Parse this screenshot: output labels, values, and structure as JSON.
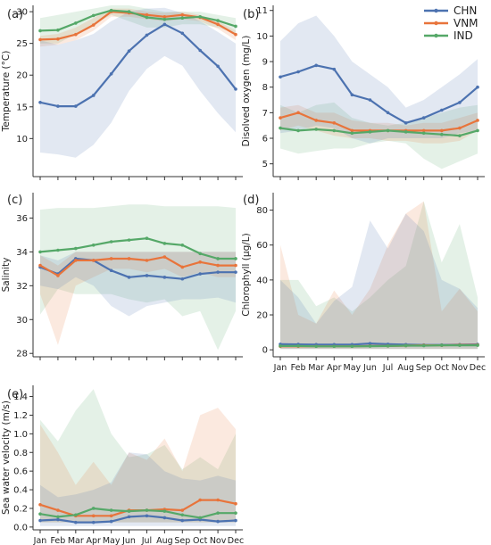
{
  "legend": {
    "position": "top-right",
    "items": [
      {
        "label": "CHN",
        "color": "#4C72B0"
      },
      {
        "label": "VNM",
        "color": "#E8743B"
      },
      {
        "label": "IND",
        "color": "#55A868"
      }
    ]
  },
  "months": [
    "Jan",
    "Feb",
    "Mar",
    "Apr",
    "May",
    "Jun",
    "Jul",
    "Aug",
    "Sep",
    "Oct",
    "Nov",
    "Dec"
  ],
  "chart_data": [
    {
      "id": "temperature",
      "panel_label": "(a)",
      "type": "line",
      "ylabel": "Temperature (°C)",
      "ylim": [
        4,
        31
      ],
      "yticks": [
        10,
        15,
        20,
        25,
        30
      ],
      "grid": false,
      "show_xticks": false,
      "series": [
        {
          "name": "CHN",
          "color": "#4C72B0",
          "values": [
            15.7,
            15.1,
            15.1,
            16.8,
            20.2,
            23.8,
            26.3,
            28.0,
            26.6,
            23.9,
            21.4,
            17.8
          ],
          "upper": [
            25.5,
            24.8,
            25.5,
            26.5,
            28.5,
            30.0,
            30.5,
            30.6,
            29.8,
            28.5,
            26.8,
            25.0
          ],
          "lower": [
            7.8,
            7.5,
            7.0,
            9.0,
            12.5,
            17.5,
            21.0,
            23.0,
            21.5,
            17.5,
            14.0,
            11.0
          ]
        },
        {
          "name": "VNM",
          "color": "#E8743B",
          "values": [
            25.6,
            25.7,
            26.4,
            27.9,
            30.0,
            29.8,
            29.5,
            29.2,
            29.5,
            29.1,
            28.0,
            26.4
          ],
          "upper": [
            26.2,
            26.5,
            27.5,
            29.0,
            30.5,
            30.5,
            30.0,
            29.8,
            30.0,
            29.5,
            28.5,
            27.0
          ],
          "lower": [
            24.5,
            24.8,
            25.5,
            27.0,
            29.2,
            29.2,
            28.8,
            28.5,
            28.8,
            28.5,
            27.3,
            25.5
          ]
        },
        {
          "name": "IND",
          "color": "#55A868",
          "values": [
            27.0,
            27.1,
            28.2,
            29.4,
            30.2,
            30.0,
            29.1,
            28.8,
            29.0,
            29.2,
            28.6,
            27.7
          ],
          "upper": [
            29.0,
            29.5,
            30.0,
            30.5,
            31.0,
            31.0,
            30.5,
            30.0,
            30.0,
            30.0,
            29.5,
            29.0
          ],
          "lower": [
            25.0,
            25.0,
            26.5,
            28.0,
            29.5,
            28.5,
            27.5,
            27.5,
            28.0,
            28.0,
            27.5,
            26.5
          ]
        }
      ]
    },
    {
      "id": "dissolved_oxygen",
      "panel_label": "(b)",
      "type": "line",
      "ylabel": "Disolved oxygen (mg/L)",
      "ylim": [
        4.5,
        11.2
      ],
      "yticks": [
        5,
        6,
        7,
        8,
        9,
        10,
        11
      ],
      "grid": false,
      "show_xticks": false,
      "series": [
        {
          "name": "CHN",
          "color": "#4C72B0",
          "values": [
            8.4,
            8.6,
            8.85,
            8.7,
            7.7,
            7.5,
            7.0,
            6.6,
            6.8,
            7.1,
            7.4,
            8.0
          ],
          "upper": [
            9.8,
            10.5,
            10.8,
            10.0,
            9.0,
            8.5,
            8.0,
            7.2,
            7.5,
            8.0,
            8.5,
            9.1
          ],
          "lower": [
            6.2,
            6.3,
            6.5,
            6.4,
            6.0,
            5.8,
            6.0,
            6.0,
            6.0,
            6.0,
            6.2,
            6.3
          ]
        },
        {
          "name": "VNM",
          "color": "#E8743B",
          "values": [
            6.8,
            7.0,
            6.7,
            6.6,
            6.3,
            6.3,
            6.3,
            6.3,
            6.3,
            6.3,
            6.4,
            6.7
          ],
          "upper": [
            7.2,
            7.3,
            7.0,
            7.0,
            6.7,
            6.6,
            6.6,
            6.5,
            6.6,
            6.6,
            6.8,
            7.0
          ],
          "lower": [
            6.3,
            6.5,
            6.3,
            6.1,
            6.0,
            6.0,
            5.9,
            5.9,
            5.8,
            5.8,
            5.9,
            6.3
          ]
        },
        {
          "name": "IND",
          "color": "#55A868",
          "values": [
            6.4,
            6.3,
            6.35,
            6.3,
            6.2,
            6.25,
            6.3,
            6.25,
            6.2,
            6.15,
            6.1,
            6.3
          ],
          "upper": [
            7.3,
            7.0,
            7.3,
            7.4,
            6.8,
            6.6,
            6.5,
            6.6,
            6.8,
            7.0,
            7.2,
            7.3
          ],
          "lower": [
            5.6,
            5.4,
            5.5,
            5.6,
            5.6,
            5.8,
            5.9,
            5.8,
            5.2,
            4.8,
            5.1,
            5.4
          ]
        }
      ]
    },
    {
      "id": "salinity",
      "panel_label": "(c)",
      "type": "line",
      "ylabel": "Salinity",
      "ylim": [
        27.8,
        37.5
      ],
      "yticks": [
        28,
        30,
        32,
        34,
        36
      ],
      "grid": false,
      "show_xticks": false,
      "series": [
        {
          "name": "CHN",
          "color": "#4C72B0",
          "values": [
            33.1,
            32.7,
            33.6,
            33.5,
            32.9,
            32.5,
            32.6,
            32.5,
            32.4,
            32.7,
            32.8,
            32.8
          ],
          "upper": [
            33.8,
            33.5,
            34.0,
            34.0,
            34.0,
            34.0,
            34.0,
            34.0,
            34.0,
            34.0,
            34.0,
            34.0
          ],
          "lower": [
            32.0,
            31.8,
            32.5,
            32.0,
            30.8,
            30.2,
            30.8,
            31.0,
            31.2,
            31.2,
            31.3,
            31.0
          ]
        },
        {
          "name": "VNM",
          "color": "#E8743B",
          "values": [
            33.2,
            32.6,
            33.5,
            33.5,
            33.6,
            33.6,
            33.5,
            33.7,
            33.1,
            33.4,
            33.2,
            33.2
          ],
          "upper": [
            33.8,
            33.2,
            34.0,
            34.0,
            34.0,
            34.0,
            34.0,
            34.0,
            34.0,
            34.0,
            34.0,
            34.0
          ],
          "lower": [
            31.5,
            28.5,
            32.0,
            32.5,
            33.0,
            33.0,
            32.8,
            33.0,
            32.5,
            32.8,
            32.5,
            32.5
          ]
        },
        {
          "name": "IND",
          "color": "#55A868",
          "values": [
            34.0,
            34.1,
            34.2,
            34.4,
            34.6,
            34.7,
            34.8,
            34.5,
            34.4,
            33.9,
            33.6,
            33.6
          ],
          "upper": [
            36.5,
            36.6,
            36.6,
            36.6,
            36.7,
            36.8,
            36.8,
            36.7,
            36.7,
            36.7,
            36.7,
            36.6
          ],
          "lower": [
            30.3,
            31.8,
            31.5,
            31.5,
            31.5,
            31.2,
            31.0,
            31.2,
            30.2,
            30.5,
            28.2,
            30.5
          ]
        }
      ]
    },
    {
      "id": "chlorophyll",
      "panel_label": "(d)",
      "type": "line",
      "ylabel": "Chlorophyll (μg/L)",
      "ylim": [
        -4,
        90
      ],
      "yticks": [
        0,
        20,
        40,
        60,
        80
      ],
      "grid": false,
      "show_xticks": true,
      "series": [
        {
          "name": "CHN",
          "color": "#4C72B0",
          "values": [
            3.2,
            3.1,
            3.0,
            3.0,
            3.0,
            3.6,
            3.2,
            3.0,
            2.8,
            2.8,
            3.0,
            3.1
          ],
          "upper": [
            40.0,
            30.0,
            15.0,
            28.0,
            36.0,
            74.0,
            58.0,
            78.0,
            68.0,
            40.0,
            35.0,
            24.0
          ],
          "lower": [
            0.5,
            0.5,
            0.5,
            0.5,
            0.5,
            0.5,
            0.5,
            0.5,
            0.5,
            0.5,
            0.5,
            0.5
          ]
        },
        {
          "name": "VNM",
          "color": "#E8743B",
          "values": [
            2.0,
            2.0,
            2.0,
            2.0,
            2.0,
            2.2,
            2.2,
            2.4,
            2.6,
            2.6,
            2.8,
            2.8
          ],
          "upper": [
            60.0,
            20.0,
            15.0,
            34.0,
            20.0,
            35.0,
            60.0,
            78.0,
            85.0,
            22.0,
            35.0,
            22.0
          ],
          "lower": [
            0.5,
            0.5,
            0.5,
            0.5,
            0.5,
            0.5,
            0.5,
            0.5,
            0.5,
            0.5,
            0.5,
            0.5
          ]
        },
        {
          "name": "IND",
          "color": "#55A868",
          "values": [
            2.2,
            2.2,
            2.0,
            2.0,
            2.0,
            2.1,
            2.2,
            2.4,
            2.4,
            2.6,
            2.6,
            2.6
          ],
          "upper": [
            40.0,
            40.0,
            25.0,
            30.0,
            22.0,
            30.0,
            40.0,
            48.0,
            85.0,
            50.0,
            72.0,
            30.0
          ],
          "lower": [
            0.5,
            0.5,
            0.5,
            0.5,
            0.5,
            0.5,
            0.5,
            0.5,
            0.5,
            0.5,
            0.5,
            0.5
          ]
        }
      ]
    },
    {
      "id": "sea_water_velocity",
      "panel_label": "(e)",
      "type": "line",
      "ylabel": "Sea water velocity (m/s)",
      "ylim": [
        -0.03,
        1.52
      ],
      "yticks": [
        0.0,
        0.2,
        0.4,
        0.6,
        0.8,
        1.0,
        1.2,
        1.4
      ],
      "grid": false,
      "show_xticks": true,
      "series": [
        {
          "name": "CHN",
          "color": "#4C72B0",
          "values": [
            0.07,
            0.08,
            0.05,
            0.05,
            0.06,
            0.11,
            0.12,
            0.1,
            0.07,
            0.08,
            0.06,
            0.07
          ],
          "upper": [
            0.45,
            0.32,
            0.35,
            0.4,
            0.48,
            0.8,
            0.78,
            0.6,
            0.52,
            0.5,
            0.55,
            0.5
          ],
          "lower": [
            0.01,
            0.01,
            0.01,
            0.01,
            0.01,
            0.01,
            0.01,
            0.01,
            0.01,
            0.01,
            0.01,
            0.01
          ]
        },
        {
          "name": "VNM",
          "color": "#E8743B",
          "values": [
            0.24,
            0.18,
            0.12,
            0.12,
            0.12,
            0.18,
            0.18,
            0.19,
            0.18,
            0.29,
            0.29,
            0.25
          ],
          "upper": [
            1.1,
            0.8,
            0.45,
            0.7,
            0.45,
            0.8,
            0.72,
            0.95,
            0.6,
            1.2,
            1.28,
            1.05
          ],
          "lower": [
            0.05,
            0.05,
            0.05,
            0.05,
            0.05,
            0.05,
            0.05,
            0.05,
            0.05,
            0.05,
            0.05,
            0.05
          ]
        },
        {
          "name": "IND",
          "color": "#55A868",
          "values": [
            0.14,
            0.11,
            0.13,
            0.2,
            0.18,
            0.17,
            0.18,
            0.17,
            0.13,
            0.1,
            0.15,
            0.15
          ],
          "upper": [
            1.15,
            0.92,
            1.25,
            1.48,
            1.0,
            0.75,
            0.78,
            0.88,
            0.62,
            0.75,
            0.62,
            1.0
          ],
          "lower": [
            0.05,
            0.05,
            0.05,
            0.05,
            0.05,
            0.05,
            0.05,
            0.05,
            0.05,
            0.05,
            0.05,
            0.05
          ]
        }
      ]
    }
  ]
}
